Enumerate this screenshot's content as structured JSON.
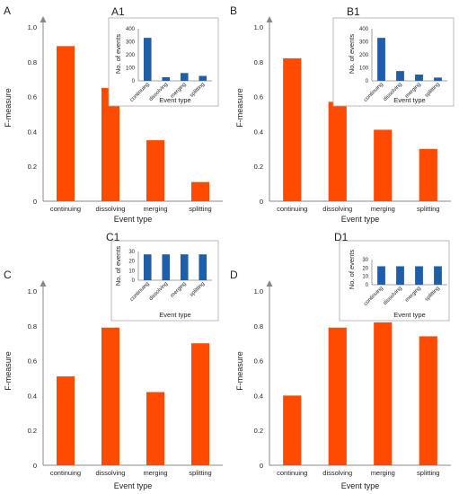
{
  "colors": {
    "main_bar": "#ff4a00",
    "inset_bar": "#1f5fa8",
    "axis": "#888888",
    "arrow": "#888888"
  },
  "chart_data": [
    {
      "id": "A",
      "type": "bar",
      "categories": [
        "continuing",
        "dissolving",
        "merging",
        "splitting"
      ],
      "values": [
        0.89,
        0.65,
        0.35,
        0.11
      ],
      "xlabel": "Event type",
      "ylabel": "F-measure",
      "ylim": [
        0,
        1.0
      ],
      "yticks": [
        "0",
        "0.2",
        "0.4",
        "0.6",
        "0.8",
        "1.0"
      ],
      "inset": {
        "id": "A1",
        "type": "bar",
        "categories": [
          "continuing",
          "dissolving",
          "merging",
          "splitting"
        ],
        "values": [
          330,
          28,
          60,
          38
        ],
        "xlabel": "Event type",
        "ylabel": "No. of events",
        "ylim": [
          0,
          400
        ],
        "yticks": [
          "0",
          "100",
          "200",
          "300",
          "400"
        ]
      }
    },
    {
      "id": "B",
      "type": "bar",
      "categories": [
        "continuing",
        "dissolving",
        "merging",
        "splitting"
      ],
      "values": [
        0.82,
        0.57,
        0.41,
        0.3
      ],
      "xlabel": "Event type",
      "ylabel": "F-measure",
      "ylim": [
        0,
        1.0
      ],
      "yticks": [
        "0",
        "0.2",
        "0.4",
        "0.6",
        "0.8",
        "1.0"
      ],
      "inset": {
        "id": "B1",
        "type": "bar",
        "categories": [
          "continuing",
          "dissolving",
          "merging",
          "splitting"
        ],
        "values": [
          330,
          75,
          48,
          25
        ],
        "xlabel": "Event type",
        "ylabel": "No. of events",
        "ylim": [
          0,
          400
        ],
        "yticks": [
          "0",
          "100",
          "200",
          "300",
          "400"
        ]
      }
    },
    {
      "id": "C",
      "type": "bar",
      "categories": [
        "continuing",
        "dissolving",
        "merging",
        "splitting"
      ],
      "values": [
        0.51,
        0.79,
        0.42,
        0.7
      ],
      "xlabel": "Event type",
      "ylabel": "F-measure",
      "ylim": [
        0,
        1.0
      ],
      "yticks": [
        "0",
        "0.2",
        "0.4",
        "0.6",
        "0.8",
        "1.0"
      ],
      "inset": {
        "id": "C1",
        "type": "bar",
        "categories": [
          "continuing",
          "dissolving",
          "merging",
          "splitting"
        ],
        "values": [
          27,
          27,
          27,
          27
        ],
        "xlabel": "Event type",
        "ylabel": "No. of events",
        "ylim": [
          0,
          30
        ],
        "yticks": [
          "0",
          "10",
          "20",
          "30"
        ]
      }
    },
    {
      "id": "D",
      "type": "bar",
      "categories": [
        "continuing",
        "dissolving",
        "merging",
        "splitting"
      ],
      "values": [
        0.4,
        0.79,
        0.82,
        0.74
      ],
      "xlabel": "Event type",
      "ylabel": "F-measure",
      "ylim": [
        0,
        1.0
      ],
      "yticks": [
        "0",
        "0.2",
        "0.4",
        "0.6",
        "0.8",
        "1.0"
      ],
      "inset": {
        "id": "D1",
        "type": "bar",
        "categories": [
          "continuing",
          "dissolving",
          "merging",
          "splitting"
        ],
        "values": [
          22,
          22,
          22,
          22
        ],
        "xlabel": "Event type",
        "ylabel": "No. of events",
        "ylim": [
          0,
          30
        ],
        "yticks": [
          "0",
          "10",
          "20",
          "30"
        ]
      }
    }
  ]
}
